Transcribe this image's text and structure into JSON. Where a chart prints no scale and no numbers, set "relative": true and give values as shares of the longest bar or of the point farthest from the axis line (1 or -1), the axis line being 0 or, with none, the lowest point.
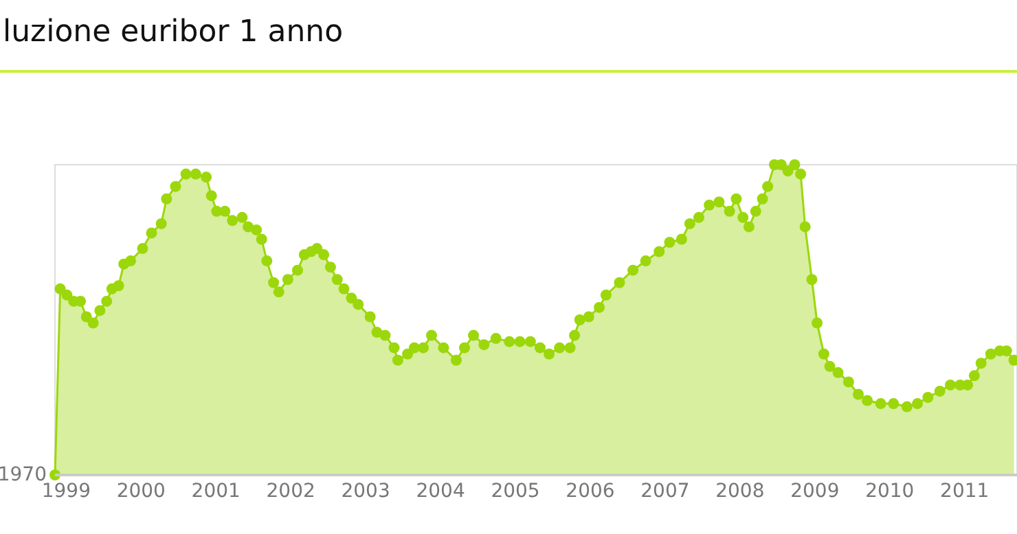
{
  "chart_data": {
    "type": "area",
    "title": "luzione euribor 1 anno",
    "relative": true,
    "tick_labels": "x",
    "marker": "circle",
    "annotations": [
      {
        "text": "1970",
        "x": 1998.85,
        "y": 0
      }
    ],
    "xlim": [
      1998.85,
      2011.7
    ],
    "xticks": [
      1999,
      2000,
      2001,
      2002,
      2003,
      2004,
      2005,
      2006,
      2007,
      2008,
      2009,
      2010,
      2011
    ],
    "series": [
      {
        "color": "#9cd70c",
        "x": [
          1998.85,
          1998.92,
          1999.01,
          1999.1,
          1999.19,
          1999.27,
          1999.36,
          1999.45,
          1999.54,
          1999.61,
          1999.7,
          1999.77,
          1999.86,
          2000.02,
          2000.14,
          2000.27,
          2000.34,
          2000.46,
          2000.6,
          2000.73,
          2000.87,
          2000.94,
          2001.01,
          2001.12,
          2001.22,
          2001.35,
          2001.43,
          2001.54,
          2001.61,
          2001.68,
          2001.77,
          2001.84,
          2001.96,
          2002.09,
          2002.18,
          2002.27,
          2002.35,
          2002.44,
          2002.53,
          2002.62,
          2002.71,
          2002.81,
          2002.9,
          2003.06,
          2003.15,
          2003.26,
          2003.38,
          2003.43,
          2003.56,
          2003.65,
          2003.77,
          2003.88,
          2004.04,
          2004.21,
          2004.32,
          2004.44,
          2004.58,
          2004.74,
          2004.92,
          2005.06,
          2005.2,
          2005.33,
          2005.45,
          2005.59,
          2005.73,
          2005.79,
          2005.86,
          2005.98,
          2006.12,
          2006.21,
          2006.39,
          2006.57,
          2006.74,
          2006.92,
          2007.06,
          2007.22,
          2007.33,
          2007.45,
          2007.59,
          2007.72,
          2007.86,
          2007.95,
          2008.04,
          2008.12,
          2008.21,
          2008.3,
          2008.37,
          2008.46,
          2008.55,
          2008.64,
          2008.73,
          2008.81,
          2008.87,
          2008.96,
          2009.03,
          2009.12,
          2009.2,
          2009.31,
          2009.45,
          2009.58,
          2009.7,
          2009.88,
          2010.05,
          2010.23,
          2010.37,
          2010.51,
          2010.67,
          2010.81,
          2010.94,
          2011.04,
          2011.13,
          2011.22,
          2011.35,
          2011.47,
          2011.56,
          2011.66
        ],
        "values": [
          0,
          0.6,
          0.58,
          0.56,
          0.56,
          0.51,
          0.49,
          0.53,
          0.56,
          0.6,
          0.61,
          0.68,
          0.69,
          0.73,
          0.78,
          0.81,
          0.89,
          0.93,
          0.97,
          0.97,
          0.96,
          0.9,
          0.85,
          0.85,
          0.82,
          0.83,
          0.8,
          0.79,
          0.76,
          0.69,
          0.62,
          0.59,
          0.63,
          0.66,
          0.71,
          0.72,
          0.73,
          0.71,
          0.67,
          0.63,
          0.6,
          0.57,
          0.55,
          0.51,
          0.46,
          0.45,
          0.41,
          0.37,
          0.39,
          0.41,
          0.41,
          0.45,
          0.41,
          0.37,
          0.41,
          0.45,
          0.42,
          0.44,
          0.43,
          0.43,
          0.43,
          0.41,
          0.39,
          0.41,
          0.41,
          0.45,
          0.5,
          0.51,
          0.54,
          0.58,
          0.62,
          0.66,
          0.69,
          0.72,
          0.75,
          0.76,
          0.81,
          0.83,
          0.87,
          0.88,
          0.85,
          0.89,
          0.83,
          0.8,
          0.85,
          0.89,
          0.93,
          1,
          1,
          0.98,
          1,
          0.97,
          0.8,
          0.63,
          0.49,
          0.39,
          0.35,
          0.33,
          0.3,
          0.26,
          0.24,
          0.23,
          0.23,
          0.22,
          0.23,
          0.25,
          0.27,
          0.29,
          0.29,
          0.29,
          0.32,
          0.36,
          0.39,
          0.4,
          0.4,
          0.37
        ]
      }
    ]
  }
}
